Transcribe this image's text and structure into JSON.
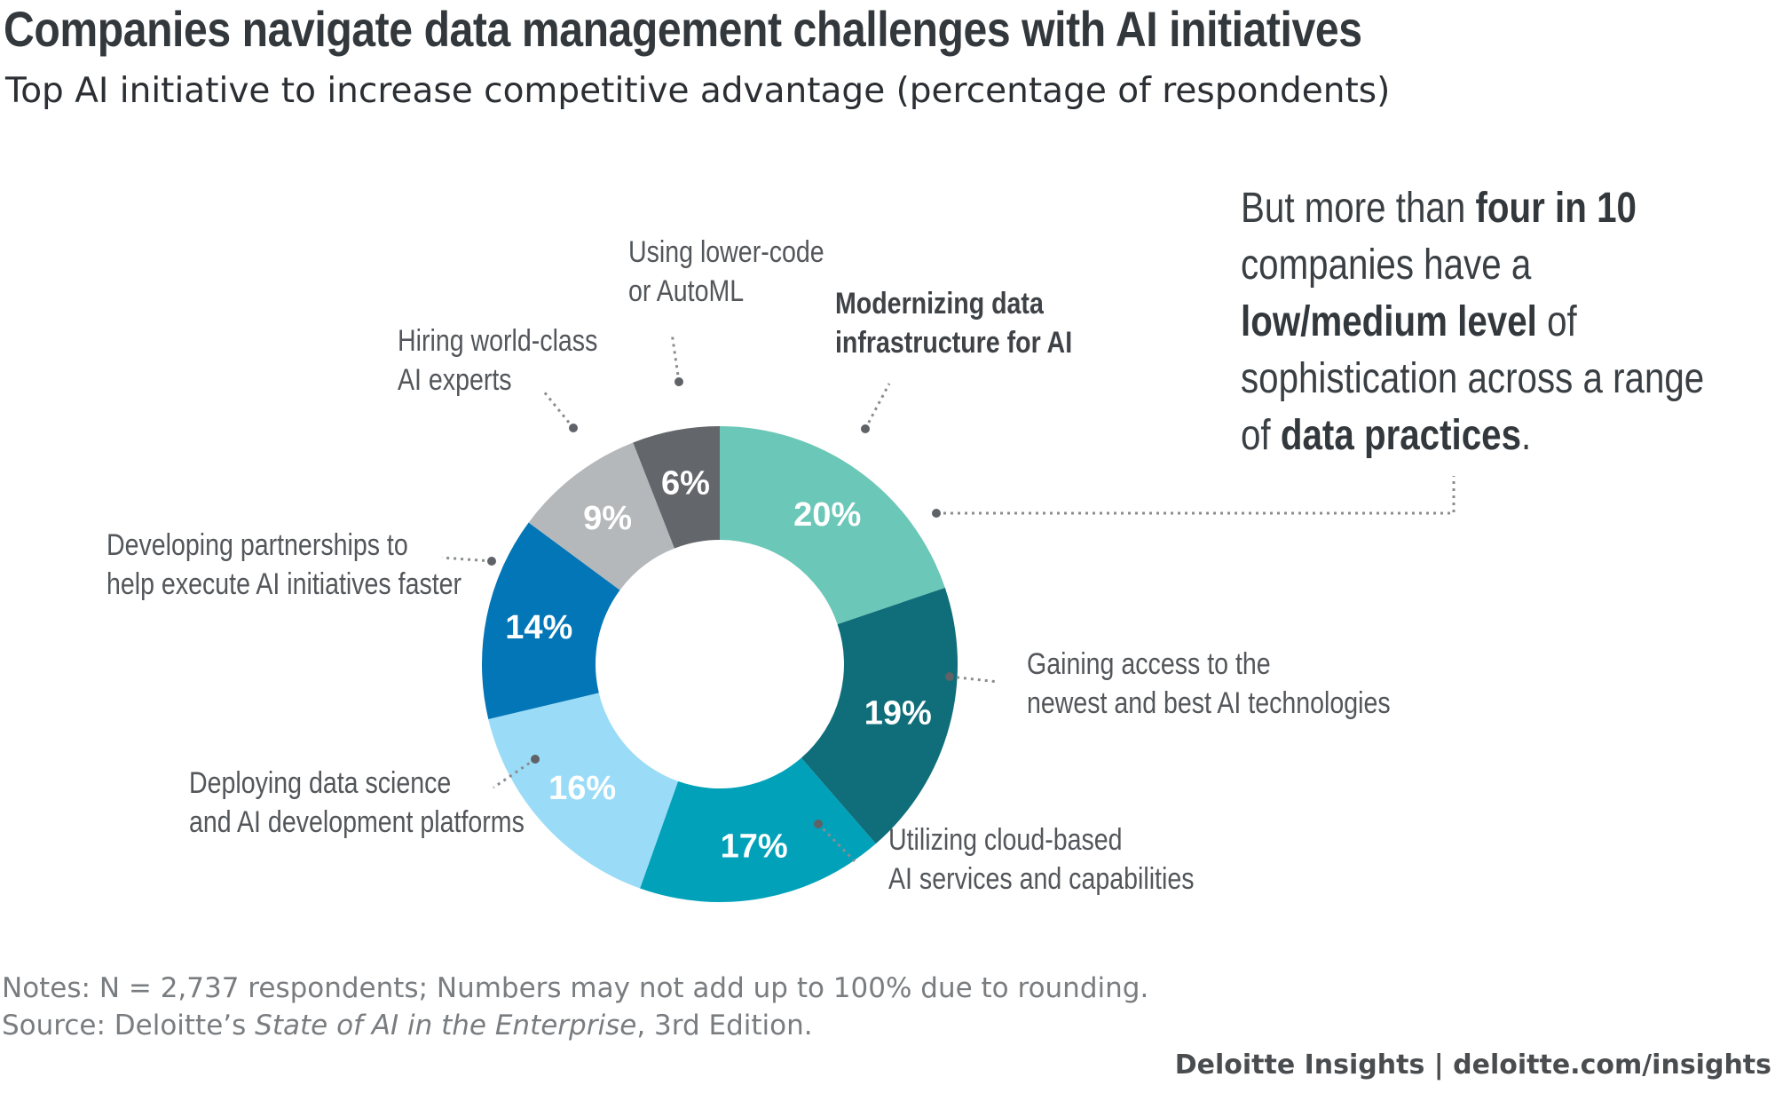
{
  "title": "Companies navigate data management challenges with AI initiatives",
  "subtitle": "Top AI initiative to increase competitive advantage (percentage of respondents)",
  "chart_data": {
    "type": "pie",
    "variant": "donut",
    "title": "Companies navigate data management challenges with AI initiatives",
    "subtitle": "Top AI initiative to increase competitive advantage (percentage of respondents)",
    "slices": [
      {
        "label_lines": [
          "Modernizing data",
          "infrastructure for AI"
        ],
        "value": 20,
        "display": "20%",
        "color": "#6bc7b7",
        "highlight": true
      },
      {
        "label_lines": [
          "Gaining access to the",
          "newest and best AI technologies"
        ],
        "value": 19,
        "display": "19%",
        "color": "#0f6e79"
      },
      {
        "label_lines": [
          "Utilizing cloud-based",
          "AI services and capabilities"
        ],
        "value": 17,
        "display": "17%",
        "color": "#01a2b9"
      },
      {
        "label_lines": [
          "Deploying data science",
          "and AI development platforms"
        ],
        "value": 16,
        "display": "16%",
        "color": "#9adcf7"
      },
      {
        "label_lines": [
          "Developing partnerships to",
          "help execute AI initiatives faster"
        ],
        "value": 14,
        "display": "14%",
        "color": "#0376b8"
      },
      {
        "label_lines": [
          "Hiring world-class",
          "AI experts"
        ],
        "value": 9,
        "display": "9%",
        "color": "#b4b8ba"
      },
      {
        "label_lines": [
          "Using lower-code",
          "or AutoML"
        ],
        "value": 6,
        "display": "6%",
        "color": "#63666a"
      }
    ],
    "legend": "none"
  },
  "side_note": {
    "parts": [
      {
        "text": "But more than ",
        "bold": false
      },
      {
        "text": "four in 10",
        "bold": true
      },
      {
        "text": "\ncompanies have a\n",
        "bold": false
      },
      {
        "text": "low/medium level",
        "bold": true
      },
      {
        "text": " of\nsophistication across a range\nof ",
        "bold": false
      },
      {
        "text": "data practices",
        "bold": true
      },
      {
        "text": ".",
        "bold": false
      }
    ]
  },
  "notes": {
    "line1": "Notes: N = 2,737 respondents; Numbers may not add up to 100% due to rounding.",
    "source_prefix": "Source: Deloitte’s ",
    "source_title": "State of AI in the Enterprise",
    "source_suffix": ", 3rd Edition."
  },
  "brand": "Deloitte Insights | deloitte.com/insights"
}
